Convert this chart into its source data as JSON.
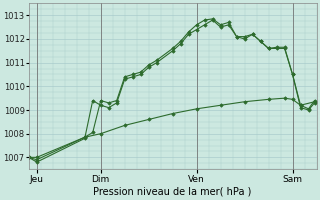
{
  "bg_color": "#cce8e0",
  "grid_color": "#aacccc",
  "line_color": "#2d6b2d",
  "xlabel": "Pression niveau de la mer( hPa )",
  "ylim": [
    1006.5,
    1013.5
  ],
  "yticks": [
    1007,
    1008,
    1009,
    1010,
    1011,
    1012,
    1013
  ],
  "xlim": [
    0,
    144
  ],
  "xtick_positions": [
    4,
    36,
    84,
    132
  ],
  "xtick_labels": [
    "Jeu",
    "Dim",
    "Ven",
    "Sam"
  ],
  "vline_positions": [
    4,
    36,
    84,
    132
  ],
  "s1x": [
    0,
    4,
    28,
    32,
    36,
    40,
    44,
    48,
    52,
    56,
    60,
    64,
    72,
    76,
    80,
    84,
    88,
    92,
    96,
    100,
    104,
    108,
    112,
    116,
    120,
    124,
    128,
    132,
    136,
    140,
    143
  ],
  "s1y": [
    1007.0,
    1006.8,
    1007.8,
    1009.4,
    1009.2,
    1009.1,
    1009.3,
    1010.3,
    1010.4,
    1010.5,
    1010.8,
    1011.0,
    1011.5,
    1011.8,
    1012.2,
    1012.4,
    1012.6,
    1012.8,
    1012.5,
    1012.6,
    1012.1,
    1012.0,
    1012.2,
    1011.9,
    1011.6,
    1011.6,
    1011.6,
    1010.5,
    1009.1,
    1009.0,
    1009.3
  ],
  "s2x": [
    0,
    4,
    28,
    32,
    36,
    40,
    44,
    48,
    52,
    56,
    60,
    64,
    72,
    76,
    80,
    84,
    88,
    92,
    96,
    100,
    104,
    108,
    112,
    116,
    120,
    124,
    128,
    132,
    136,
    140,
    143
  ],
  "s2y": [
    1007.0,
    1006.9,
    1007.85,
    1008.05,
    1009.4,
    1009.3,
    1009.4,
    1010.4,
    1010.5,
    1010.6,
    1010.9,
    1011.1,
    1011.6,
    1011.9,
    1012.3,
    1012.6,
    1012.8,
    1012.85,
    1012.6,
    1012.7,
    1012.1,
    1012.1,
    1012.2,
    1011.9,
    1011.6,
    1011.65,
    1011.65,
    1010.5,
    1009.2,
    1009.05,
    1009.4
  ],
  "s3x": [
    0,
    4,
    28,
    36,
    48,
    60,
    72,
    84,
    96,
    108,
    120,
    128,
    132,
    136,
    143
  ],
  "s3y": [
    1007.0,
    1007.0,
    1007.85,
    1008.0,
    1008.35,
    1008.6,
    1008.85,
    1009.05,
    1009.2,
    1009.35,
    1009.45,
    1009.5,
    1009.45,
    1009.2,
    1009.35
  ]
}
